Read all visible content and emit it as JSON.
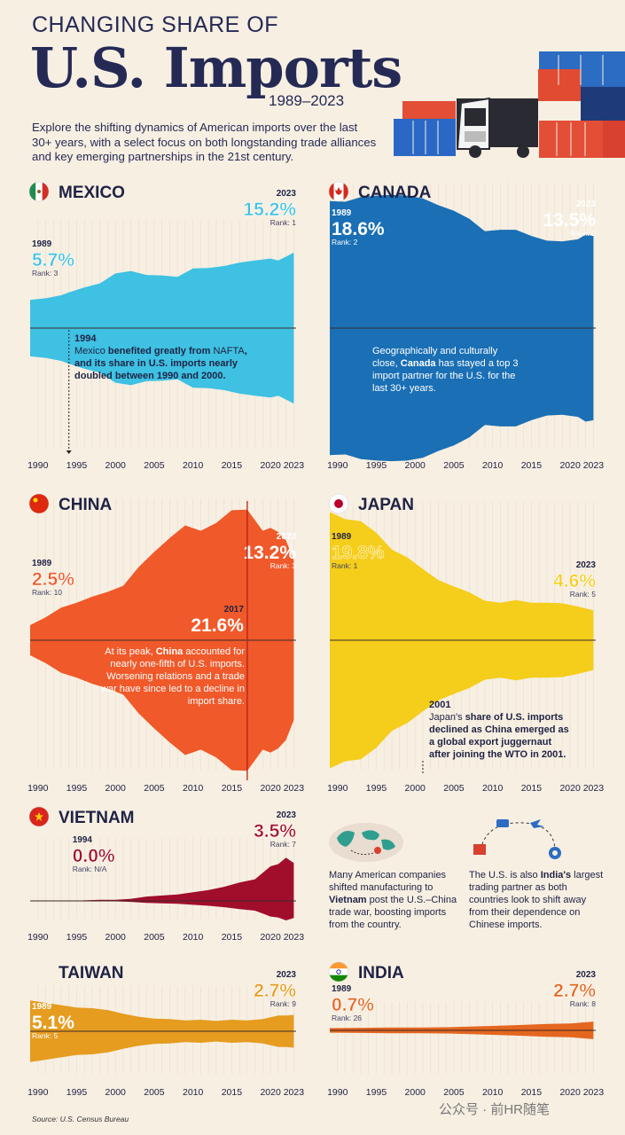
{
  "header": {
    "title_small": "CHANGING SHARE OF",
    "title_big": "U.S. Imports",
    "years": "1989–2023",
    "description": "Explore the shifting dynamics of American imports over the last 30+ years, with a select focus on both longstanding trade alliances and key emerging partnerships in the 21st century."
  },
  "colors": {
    "background": "#f7efe2",
    "mexico": "#3ec1e2",
    "canada": "#1a6fb5",
    "china": "#f0592a",
    "japan": "#f5cd1b",
    "vietnam": "#a10e2c",
    "taiwan": "#e59c1f",
    "india": "#e4661f",
    "gridline": "#e8ddd0",
    "axis_dark": "#222244"
  },
  "x_ticks": [
    "1990",
    "1995",
    "2000",
    "2005",
    "2010",
    "2015",
    "2020",
    "2023"
  ],
  "chart_data": [
    {
      "id": "mexico",
      "type": "area",
      "title": "MEXICO",
      "x": [
        1989,
        1991,
        1993,
        1994,
        1996,
        1998,
        2000,
        2002,
        2004,
        2006,
        2008,
        2010,
        2012,
        2014,
        2016,
        2018,
        2020,
        2021,
        2022,
        2023
      ],
      "values": [
        5.7,
        6.0,
        6.6,
        7.2,
        8.2,
        9.0,
        11.0,
        11.5,
        10.7,
        10.6,
        10.3,
        12.0,
        12.1,
        12.5,
        13.2,
        13.6,
        14.0,
        13.6,
        14.4,
        15.2
      ],
      "ylim": [
        0,
        20
      ],
      "labels": [
        {
          "year": "1989",
          "value": "5.7%",
          "rank": "Rank: 3"
        },
        {
          "year": "2023",
          "value": "15.2%",
          "rank": "Rank: 1"
        }
      ],
      "note_year": "1994",
      "note_parts": [
        "Mexico",
        " benefited greatly from ",
        "NAFTA",
        ", and its share in U.S. imports nearly doubled between 1990 and 2000."
      ]
    },
    {
      "id": "canada",
      "type": "area",
      "title": "CANADA",
      "x": [
        1989,
        1991,
        1993,
        1995,
        1997,
        1999,
        2001,
        2003,
        2005,
        2007,
        2009,
        2011,
        2013,
        2015,
        2017,
        2019,
        2021,
        2022,
        2023
      ],
      "values": [
        18.6,
        18.5,
        19.2,
        19.4,
        19.5,
        19.4,
        19.0,
        18.0,
        17.2,
        16.0,
        14.2,
        14.4,
        14.4,
        13.5,
        12.8,
        12.7,
        13.0,
        13.7,
        13.5
      ],
      "ylim": [
        0,
        20
      ],
      "labels": [
        {
          "year": "1989",
          "value": "18.6%",
          "rank": "Rank: 2"
        },
        {
          "year": "2023",
          "value": "13.5%",
          "rank": "Rank: 2"
        }
      ],
      "note_parts": [
        "Geographically and culturally close, ",
        "Canada",
        " has stayed a top 3 import partner for the U.S. for the last 30+ years."
      ]
    },
    {
      "id": "china",
      "type": "area",
      "title": "CHINA",
      "x": [
        1989,
        1991,
        1993,
        1995,
        1997,
        1999,
        2001,
        2003,
        2005,
        2007,
        2009,
        2011,
        2013,
        2015,
        2017,
        2019,
        2020,
        2021,
        2022,
        2023
      ],
      "values": [
        2.5,
        3.8,
        5.4,
        6.2,
        7.2,
        8.0,
        9.0,
        12.1,
        14.6,
        16.9,
        19.0,
        18.1,
        19.4,
        21.5,
        21.6,
        18.1,
        18.6,
        17.9,
        16.5,
        13.2
      ],
      "ylim": [
        0,
        22
      ],
      "labels": [
        {
          "year": "1989",
          "value": "2.5%",
          "rank": "Rank: 10"
        },
        {
          "year": "2017",
          "value": "21.6%",
          "rank": ""
        },
        {
          "year": "2023",
          "value": "13.2%",
          "rank": "Rank: 3"
        }
      ],
      "note_parts": [
        "At its peak, ",
        "China",
        " accounted for nearly one-fifth of U.S. imports. Worsening relations and a trade war have since led to a decline in import share."
      ]
    },
    {
      "id": "japan",
      "type": "area",
      "title": "JAPAN",
      "x": [
        1989,
        1991,
        1993,
        1995,
        1997,
        1999,
        2001,
        2003,
        2005,
        2007,
        2009,
        2011,
        2013,
        2015,
        2017,
        2019,
        2021,
        2023
      ],
      "values": [
        19.8,
        18.7,
        18.4,
        16.6,
        14.0,
        12.8,
        11.0,
        9.3,
        8.3,
        7.4,
        6.1,
        5.8,
        6.2,
        5.8,
        5.8,
        5.7,
        5.2,
        4.6
      ],
      "ylim": [
        0,
        20
      ],
      "labels": [
        {
          "year": "1989",
          "value": "19.8%",
          "rank": "Rank: 1"
        },
        {
          "year": "2023",
          "value": "4.6%",
          "rank": "Rank: 5"
        }
      ],
      "note_year": "2001",
      "note_parts": [
        "Japan's",
        " share of U.S. imports declined as China emerged as a global export juggernaut after joining the WTO in 2001."
      ]
    },
    {
      "id": "vietnam",
      "type": "area",
      "title": "VIETNAM",
      "x": [
        1994,
        1996,
        1998,
        2000,
        2002,
        2004,
        2006,
        2008,
        2010,
        2012,
        2014,
        2016,
        2018,
        2019,
        2020,
        2021,
        2022,
        2023
      ],
      "values": [
        0.0,
        0.05,
        0.1,
        0.1,
        0.2,
        0.4,
        0.5,
        0.6,
        0.8,
        1.0,
        1.3,
        1.7,
        2.0,
        2.6,
        3.2,
        3.4,
        4.0,
        3.5
      ],
      "ylim": [
        0,
        5
      ],
      "labels": [
        {
          "year": "1994",
          "value": "0.0%",
          "rank": "Rank: N/A"
        },
        {
          "year": "2023",
          "value": "3.5%",
          "rank": "Rank: 7"
        }
      ],
      "note_parts": [
        "Many American companies shifted manufacturing to ",
        "Vietnam",
        " post the U.S.–China trade war, boosting imports from the country."
      ]
    },
    {
      "id": "taiwan",
      "type": "area",
      "title": "TAIWAN",
      "x": [
        1989,
        1991,
        1993,
        1995,
        1997,
        1999,
        2001,
        2003,
        2005,
        2007,
        2009,
        2011,
        2013,
        2015,
        2017,
        2019,
        2021,
        2022,
        2023
      ],
      "values": [
        5.1,
        4.7,
        4.3,
        3.9,
        3.8,
        3.5,
        2.9,
        2.4,
        2.1,
        2.0,
        1.8,
        1.9,
        1.7,
        1.9,
        1.8,
        2.0,
        2.6,
        2.6,
        2.7
      ],
      "ylim": [
        0,
        6
      ],
      "labels": [
        {
          "year": "1989",
          "value": "5.1%",
          "rank": "Rank: 5"
        },
        {
          "year": "2023",
          "value": "2.7%",
          "rank": "Rank: 9"
        }
      ]
    },
    {
      "id": "india",
      "type": "area",
      "title": "INDIA",
      "x": [
        1989,
        1993,
        1997,
        2001,
        2005,
        2009,
        2013,
        2017,
        2020,
        2023
      ],
      "values": [
        0.7,
        0.8,
        0.9,
        0.9,
        1.0,
        1.3,
        1.6,
        2.0,
        2.1,
        2.7
      ],
      "ylim": [
        0,
        6
      ],
      "labels": [
        {
          "year": "1989",
          "value": "0.7%",
          "rank": "Rank: 26"
        },
        {
          "year": "2023",
          "value": "2.7%",
          "rank": "Rank: 8"
        }
      ],
      "note_parts": [
        "The U.S. is also ",
        "India's",
        " largest trading partner as both countries look to shift away from their dependence on Chinese imports."
      ]
    }
  ],
  "footer": {
    "source": "Source: U.S. Census Bureau",
    "watermark": "公众号 · 前HR随笔"
  }
}
